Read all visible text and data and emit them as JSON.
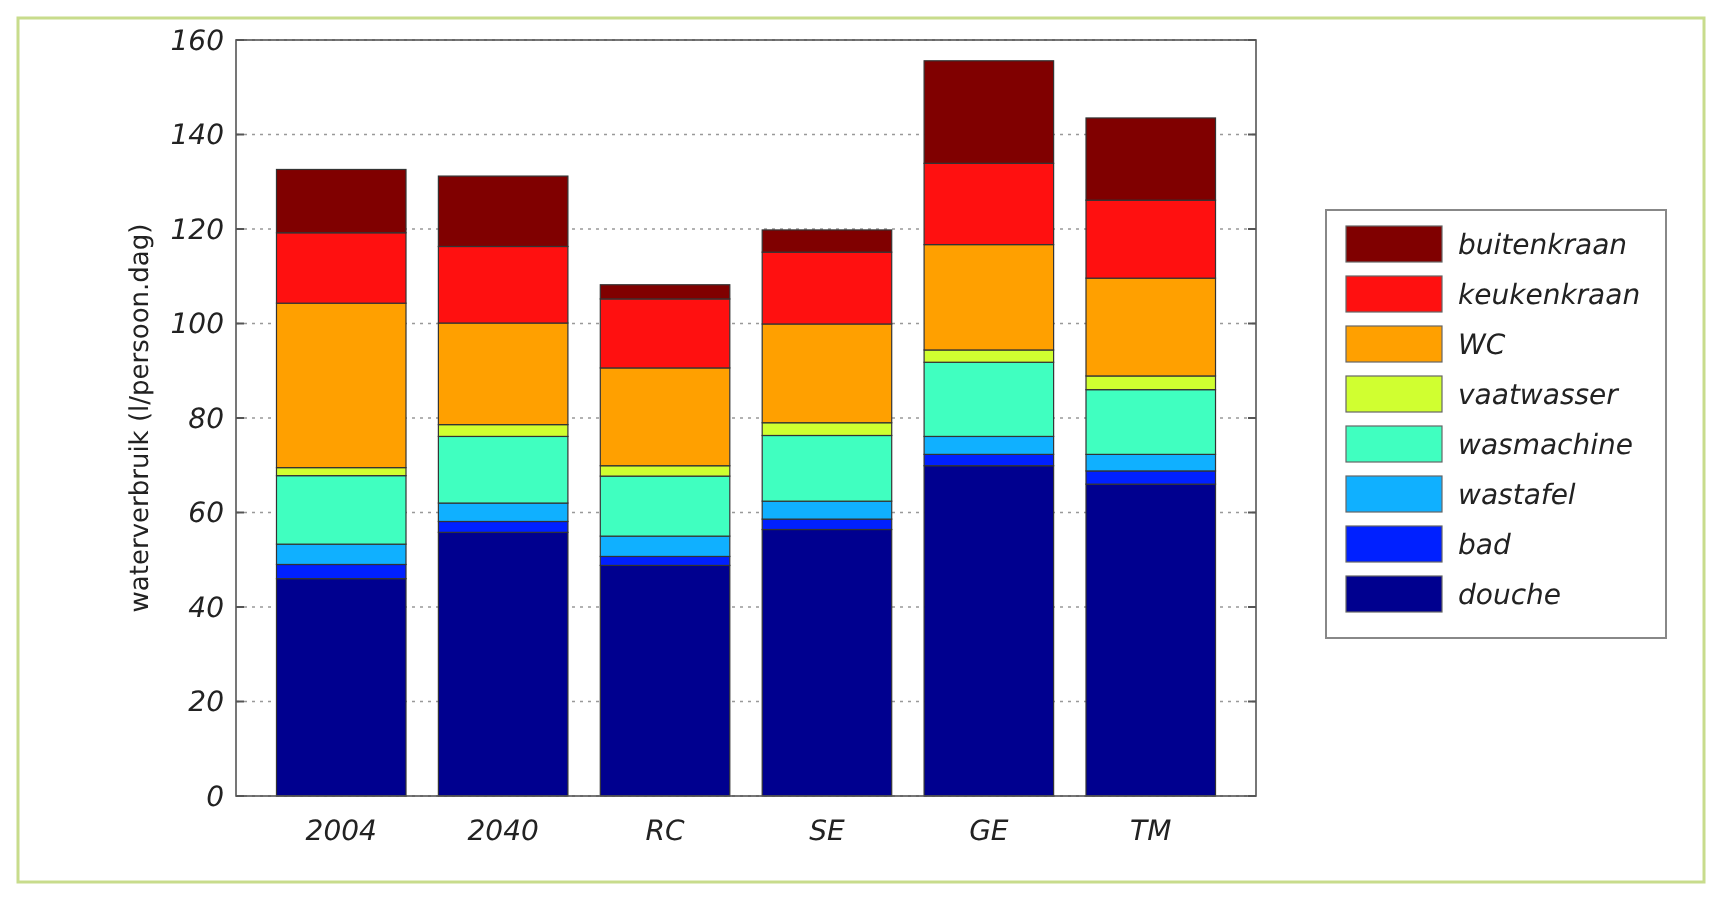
{
  "chart_data": {
    "type": "bar",
    "stacked": true,
    "ylabel": "waterverbruik (l/persoon.dag)",
    "categories": [
      "2004",
      "2040",
      "RC",
      "SE",
      "GE",
      "TM"
    ],
    "series": [
      {
        "name": "douche",
        "color": "#00008f",
        "values": [
          46.0,
          55.8,
          48.8,
          56.4,
          69.9,
          66.0
        ]
      },
      {
        "name": "bad",
        "color": "#0020ff",
        "values": [
          3.0,
          2.3,
          1.9,
          2.2,
          2.4,
          2.8
        ]
      },
      {
        "name": "wastafel",
        "color": "#10b0ff",
        "values": [
          4.3,
          3.9,
          4.3,
          3.8,
          3.8,
          3.5
        ]
      },
      {
        "name": "wasmachine",
        "color": "#40ffc0",
        "values": [
          14.5,
          14.1,
          12.7,
          13.9,
          15.7,
          13.7
        ]
      },
      {
        "name": "vaatwasser",
        "color": "#d0ff30",
        "values": [
          1.7,
          2.5,
          2.2,
          2.7,
          2.6,
          2.9
        ]
      },
      {
        "name": "WC",
        "color": "#ffa000",
        "values": [
          34.8,
          21.5,
          20.7,
          20.9,
          22.3,
          20.7
        ]
      },
      {
        "name": "keukenkraan",
        "color": "#ff1010",
        "values": [
          14.9,
          16.2,
          14.6,
          15.2,
          17.2,
          16.5
        ]
      },
      {
        "name": "buitenkraan",
        "color": "#800000",
        "values": [
          13.4,
          14.9,
          3.0,
          4.7,
          21.7,
          17.4
        ]
      }
    ],
    "ylim": [
      0,
      160
    ],
    "yticks": [
      0,
      20,
      40,
      60,
      80,
      100,
      120,
      140,
      160
    ],
    "grid": "y",
    "legend": "right"
  }
}
